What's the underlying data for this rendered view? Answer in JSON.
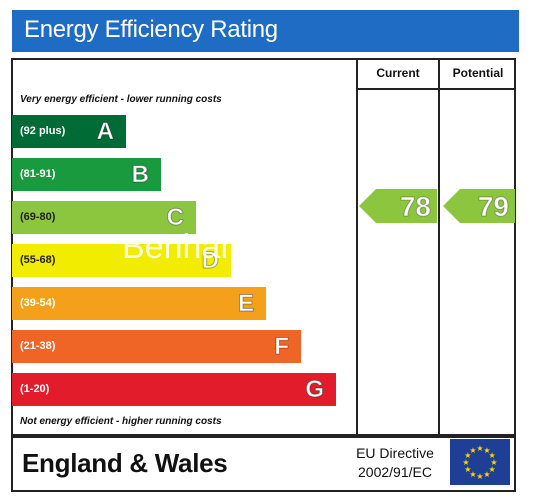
{
  "title": "Energy Efficiency Rating",
  "columns": {
    "current": "Current",
    "potential": "Potential"
  },
  "top_note": "Very energy efficient - lower running costs",
  "bottom_note": "Not energy efficient - higher running costs",
  "bands": [
    {
      "letter": "A",
      "range": "(92 plus)",
      "color": "#006b35"
    },
    {
      "letter": "B",
      "range": "(81-91)",
      "color": "#1a9a3e"
    },
    {
      "letter": "C",
      "range": "(69-80)",
      "color": "#8cc63e"
    },
    {
      "letter": "D",
      "range": "(55-68)",
      "color": "#f2ec00"
    },
    {
      "letter": "E",
      "range": "(39-54)",
      "color": "#f4a01b"
    },
    {
      "letter": "F",
      "range": "(21-38)",
      "color": "#ef6525"
    },
    {
      "letter": "G",
      "range": "(1-20)",
      "color": "#e21c2a"
    }
  ],
  "current_rating": {
    "value": "78",
    "band": "C"
  },
  "potential_rating": {
    "value": "79",
    "band": "C"
  },
  "watermark": "Benham",
  "region": "England & Wales",
  "directive_line1": "EU Directive",
  "directive_line2": "2002/91/EC"
}
